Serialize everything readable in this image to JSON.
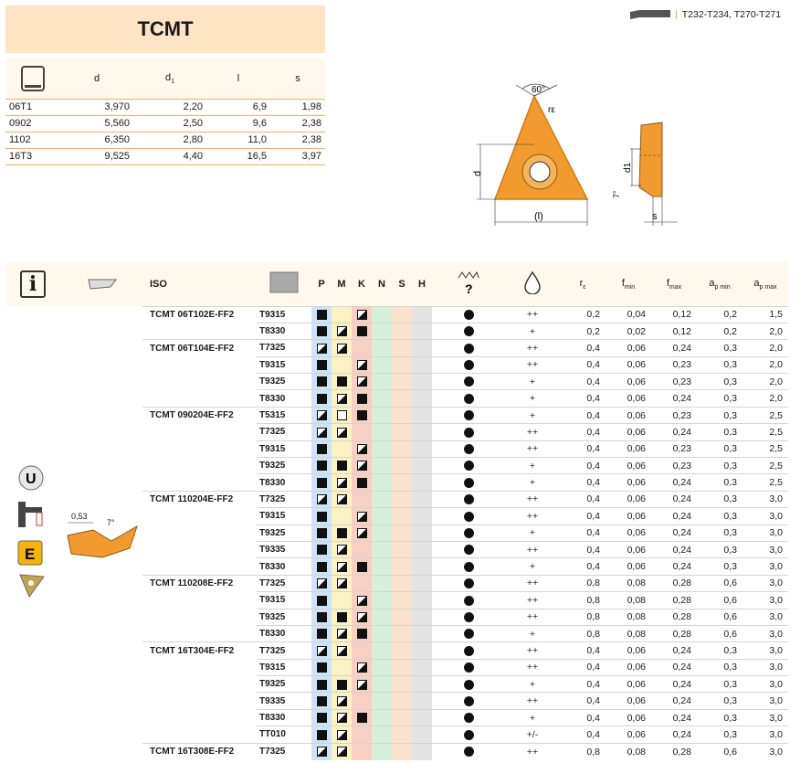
{
  "title": "TCMT",
  "reference": "T232-T234, T270-T271",
  "dims_table": {
    "headers": [
      "d",
      "d1",
      "l",
      "s"
    ],
    "rows": [
      [
        "06T1",
        "3,970",
        "2,20",
        "6,9",
        "1,98"
      ],
      [
        "0902",
        "5,560",
        "2,50",
        "9,6",
        "2,38"
      ],
      [
        "1102",
        "6,350",
        "2,80",
        "11,0",
        "2,38"
      ],
      [
        "16T3",
        "9,525",
        "4,40",
        "16,5",
        "3,97"
      ]
    ]
  },
  "drawing": {
    "angle_label": "60°",
    "re_label": "rε",
    "d_label": "d",
    "l_label": "(l)",
    "d1_label": "d1",
    "s_label": "s",
    "angle7_label": "7°"
  },
  "main_table": {
    "header_iso": "ISO",
    "materials": [
      "P",
      "M",
      "K",
      "N",
      "S",
      "H"
    ],
    "header_re": "rε",
    "header_fmin": "fmin",
    "header_fmax": "fmax",
    "header_apmin": "ap min",
    "header_apmax": "ap max",
    "groups": [
      {
        "iso": "TCMT 06T102E-FF2",
        "rows": [
          {
            "grade": "T9315",
            "P": "full",
            "M": "",
            "K": "half",
            "op": "++",
            "re": "0,2",
            "fmin": "0,04",
            "fmax": "0,12",
            "apmin": "0,2",
            "apmax": "1,5"
          },
          {
            "grade": "T8330",
            "P": "full",
            "M": "half",
            "K": "full",
            "op": "+",
            "re": "0,2",
            "fmin": "0,02",
            "fmax": "0,12",
            "apmin": "0,2",
            "apmax": "2,0"
          }
        ]
      },
      {
        "iso": "TCMT 06T104E-FF2",
        "rows": [
          {
            "grade": "T7325",
            "P": "half",
            "M": "half",
            "K": "",
            "op": "++",
            "re": "0,4",
            "fmin": "0,06",
            "fmax": "0,24",
            "apmin": "0,3",
            "apmax": "2,0"
          },
          {
            "grade": "T9315",
            "P": "full",
            "M": "",
            "K": "half",
            "op": "++",
            "re": "0,4",
            "fmin": "0,06",
            "fmax": "0,23",
            "apmin": "0,3",
            "apmax": "2,0"
          },
          {
            "grade": "T9325",
            "P": "full",
            "M": "full",
            "K": "half",
            "op": "+",
            "re": "0,4",
            "fmin": "0,06",
            "fmax": "0,23",
            "apmin": "0,3",
            "apmax": "2,0"
          },
          {
            "grade": "T8330",
            "P": "full",
            "M": "half",
            "K": "full",
            "op": "+",
            "re": "0,4",
            "fmin": "0,06",
            "fmax": "0,24",
            "apmin": "0,3",
            "apmax": "2,0"
          }
        ]
      },
      {
        "iso": "TCMT 090204E-FF2",
        "rows": [
          {
            "grade": "T5315",
            "P": "half",
            "M": "empty",
            "K": "full",
            "op": "+",
            "re": "0,4",
            "fmin": "0,06",
            "fmax": "0,23",
            "apmin": "0,3",
            "apmax": "2,5"
          },
          {
            "grade": "T7325",
            "P": "half",
            "M": "half",
            "K": "",
            "op": "++",
            "re": "0,4",
            "fmin": "0,06",
            "fmax": "0,24",
            "apmin": "0,3",
            "apmax": "2,5"
          },
          {
            "grade": "T9315",
            "P": "full",
            "M": "",
            "K": "half",
            "op": "++",
            "re": "0,4",
            "fmin": "0,06",
            "fmax": "0,23",
            "apmin": "0,3",
            "apmax": "2,5"
          },
          {
            "grade": "T9325",
            "P": "full",
            "M": "full",
            "K": "half",
            "op": "+",
            "re": "0,4",
            "fmin": "0,06",
            "fmax": "0,23",
            "apmin": "0,3",
            "apmax": "2,5"
          },
          {
            "grade": "T8330",
            "P": "full",
            "M": "half",
            "K": "full",
            "op": "+",
            "re": "0,4",
            "fmin": "0,06",
            "fmax": "0,24",
            "apmin": "0,3",
            "apmax": "2,5"
          }
        ]
      },
      {
        "iso": "TCMT 110204E-FF2",
        "rows": [
          {
            "grade": "T7325",
            "P": "half",
            "M": "half",
            "K": "",
            "op": "++",
            "re": "0,4",
            "fmin": "0,06",
            "fmax": "0,24",
            "apmin": "0,3",
            "apmax": "3,0"
          },
          {
            "grade": "T9315",
            "P": "full",
            "M": "",
            "K": "half",
            "op": "++",
            "re": "0,4",
            "fmin": "0,06",
            "fmax": "0,24",
            "apmin": "0,3",
            "apmax": "3,0"
          },
          {
            "grade": "T9325",
            "P": "full",
            "M": "full",
            "K": "half",
            "op": "+",
            "re": "0,4",
            "fmin": "0,06",
            "fmax": "0,24",
            "apmin": "0,3",
            "apmax": "3,0"
          },
          {
            "grade": "T9335",
            "P": "full",
            "M": "half",
            "K": "",
            "op": "++",
            "re": "0,4",
            "fmin": "0,06",
            "fmax": "0,24",
            "apmin": "0,3",
            "apmax": "3,0"
          },
          {
            "grade": "T8330",
            "P": "full",
            "M": "half",
            "K": "full",
            "op": "+",
            "re": "0,4",
            "fmin": "0,06",
            "fmax": "0,24",
            "apmin": "0,3",
            "apmax": "3,0"
          }
        ]
      },
      {
        "iso": "TCMT 110208E-FF2",
        "rows": [
          {
            "grade": "T7325",
            "P": "half",
            "M": "half",
            "K": "",
            "op": "++",
            "re": "0,8",
            "fmin": "0,08",
            "fmax": "0,28",
            "apmin": "0,6",
            "apmax": "3,0"
          },
          {
            "grade": "T9315",
            "P": "full",
            "M": "",
            "K": "half",
            "op": "++",
            "re": "0,8",
            "fmin": "0,08",
            "fmax": "0,28",
            "apmin": "0,6",
            "apmax": "3,0"
          },
          {
            "grade": "T9325",
            "P": "full",
            "M": "full",
            "K": "half",
            "op": "++",
            "re": "0,8",
            "fmin": "0,08",
            "fmax": "0,28",
            "apmin": "0,6",
            "apmax": "3,0"
          },
          {
            "grade": "T8330",
            "P": "full",
            "M": "half",
            "K": "full",
            "op": "+",
            "re": "0,8",
            "fmin": "0,08",
            "fmax": "0,28",
            "apmin": "0,6",
            "apmax": "3,0"
          }
        ]
      },
      {
        "iso": "TCMT 16T304E-FF2",
        "rows": [
          {
            "grade": "T7325",
            "P": "half",
            "M": "half",
            "K": "",
            "op": "++",
            "re": "0,4",
            "fmin": "0,06",
            "fmax": "0,24",
            "apmin": "0,3",
            "apmax": "3,0"
          },
          {
            "grade": "T9315",
            "P": "full",
            "M": "",
            "K": "half",
            "op": "++",
            "re": "0,4",
            "fmin": "0,06",
            "fmax": "0,24",
            "apmin": "0,3",
            "apmax": "3,0"
          },
          {
            "grade": "T9325",
            "P": "full",
            "M": "full",
            "K": "half",
            "op": "+",
            "re": "0,4",
            "fmin": "0,06",
            "fmax": "0,24",
            "apmin": "0,3",
            "apmax": "3,0"
          },
          {
            "grade": "T9335",
            "P": "full",
            "M": "half",
            "K": "",
            "op": "++",
            "re": "0,4",
            "fmin": "0,06",
            "fmax": "0,24",
            "apmin": "0,3",
            "apmax": "3,0"
          },
          {
            "grade": "T8330",
            "P": "full",
            "M": "half",
            "K": "full",
            "op": "+",
            "re": "0,4",
            "fmin": "0,06",
            "fmax": "0,24",
            "apmin": "0,3",
            "apmax": "3,0"
          },
          {
            "grade": "TT010",
            "P": "full",
            "M": "half",
            "K": "",
            "op": "+/-",
            "re": "0,4",
            "fmin": "0,06",
            "fmax": "0,24",
            "apmin": "0,3",
            "apmax": "3,0"
          }
        ]
      },
      {
        "iso": "TCMT 16T308E-FF2",
        "rows": [
          {
            "grade": "T7325",
            "P": "half",
            "M": "half",
            "K": "",
            "op": "++",
            "re": "0,8",
            "fmin": "0,08",
            "fmax": "0,28",
            "apmin": "0,6",
            "apmax": "3,0"
          }
        ]
      }
    ]
  },
  "side": {
    "dim_053": "0,53",
    "dim_7": "7°",
    "badge_e": "E",
    "badge_u": "U"
  },
  "colors": {
    "orange": "#f29a2e",
    "title_bg": "#fde4c4"
  }
}
